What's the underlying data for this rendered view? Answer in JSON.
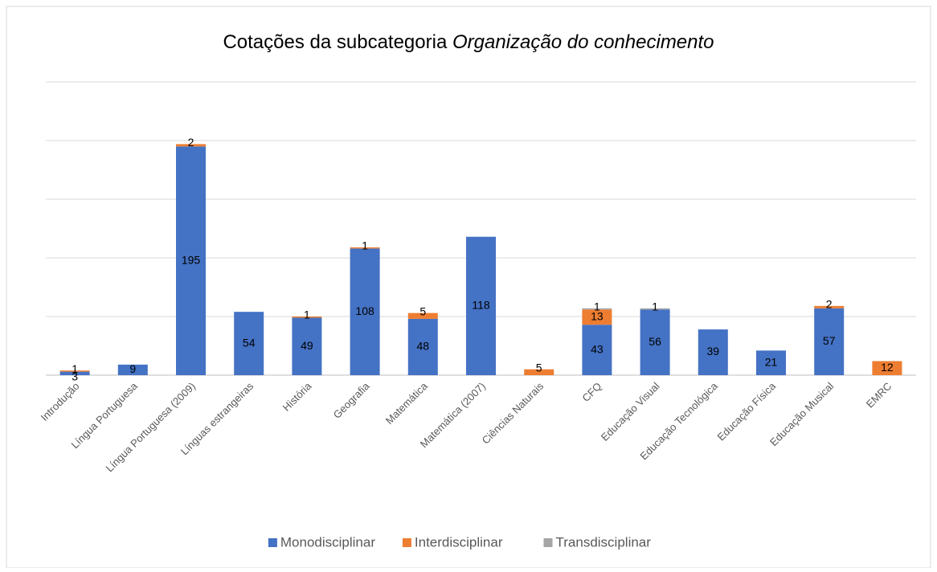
{
  "chart_data": {
    "type": "stacked_bar",
    "title": [
      "Cotações da subcategoria",
      "Organização do conhecimento"
    ],
    "categories": [
      "Introdução",
      "Língua Portuguesa",
      "Língua Portuguesa (2009)",
      "Línguas estrangeiras",
      "História",
      "Geografia",
      "Matemática",
      "Matemática (2007)",
      "Ciências Naturais",
      "CFQ",
      "Educação Visual",
      "Educação Tecnológica",
      "Educação Física",
      "Educação Musical",
      "EMRC"
    ],
    "series": [
      {
        "name": "Monodisciplinar",
        "color": "#4472c4",
        "values": [
          3,
          9,
          195,
          54,
          49,
          108,
          48,
          118,
          null,
          43,
          56,
          39,
          21,
          57,
          null
        ]
      },
      {
        "name": "Interdisciplinar",
        "color": "#ed7d31",
        "values": [
          1,
          null,
          2,
          null,
          1,
          1,
          5,
          null,
          5,
          13,
          null,
          null,
          null,
          2,
          12
        ]
      },
      {
        "name": "Transdisciplinar",
        "color": "#a5a5a5",
        "values": [
          null,
          null,
          null,
          null,
          null,
          null,
          null,
          null,
          null,
          1,
          1,
          null,
          null,
          null,
          null
        ]
      }
    ],
    "ylim": [
      0,
      250
    ],
    "yticks": [
      0,
      50,
      100,
      150,
      200,
      250
    ],
    "grid": true,
    "legend": "bottom"
  }
}
